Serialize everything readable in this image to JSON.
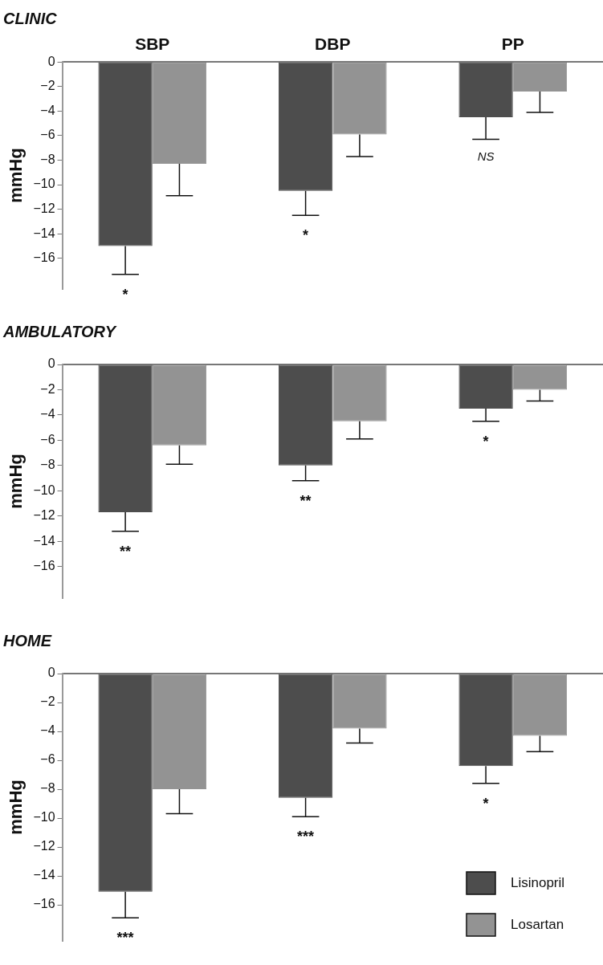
{
  "chart_data": [
    {
      "type": "bar",
      "title": "CLINIC",
      "ylabel": "mmHg",
      "categories": [
        "SBP",
        "DBP",
        "PP"
      ],
      "ylim": [
        -18.5,
        0
      ],
      "yticks": [
        0,
        -2,
        -4,
        -6,
        -8,
        -10,
        -12,
        -14,
        -16
      ],
      "grid": false,
      "legend": false,
      "series": [
        {
          "color": "#4d4d4d",
          "values": [
            -15.0,
            -10.5,
            -4.5
          ],
          "errors": [
            [
              -17.3,
              -15.0
            ],
            [
              -12.5,
              -10.5
            ],
            [
              -6.3,
              -4.5
            ]
          ]
        },
        {
          "color": "#939393",
          "values": [
            -8.3,
            -5.9,
            -2.4
          ],
          "errors": [
            [
              -10.9,
              -8.3
            ],
            [
              -7.7,
              -5.9
            ],
            [
              -4.1,
              -2.4
            ]
          ]
        }
      ],
      "annotations": [
        "*",
        "*",
        "NS"
      ]
    },
    {
      "type": "bar",
      "title": "AMBULATORY",
      "ylabel": "mmHg",
      "categories": [
        null,
        null,
        null
      ],
      "tick_labels": "y",
      "ylim": [
        -18.5,
        0
      ],
      "yticks": [
        0,
        -2,
        -4,
        -6,
        -8,
        -10,
        -12,
        -14,
        -16
      ],
      "grid": false,
      "legend": false,
      "series": [
        {
          "color": "#4d4d4d",
          "values": [
            -11.7,
            -8.0,
            -3.5
          ],
          "errors": [
            [
              -13.2,
              -11.7
            ],
            [
              -9.2,
              -8.0
            ],
            [
              -4.5,
              -3.5
            ]
          ]
        },
        {
          "color": "#939393",
          "values": [
            -6.4,
            -4.5,
            -2.0
          ],
          "errors": [
            [
              -7.9,
              -6.4
            ],
            [
              -5.9,
              -4.5
            ],
            [
              -2.9,
              -2.0
            ]
          ]
        }
      ],
      "annotations": [
        "**",
        "**",
        "*"
      ]
    },
    {
      "type": "bar",
      "title": "HOME",
      "ylabel": "mmHg",
      "categories": [
        null,
        null,
        null
      ],
      "tick_labels": "y",
      "ylim": [
        -18.5,
        0
      ],
      "yticks": [
        0,
        -2,
        -4,
        -6,
        -8,
        -10,
        -12,
        -14,
        -16
      ],
      "grid": false,
      "legend": "bottom right",
      "series": [
        {
          "name": "Lisinopril",
          "color": "#4d4d4d",
          "values": [
            -15.1,
            -8.6,
            -6.4
          ],
          "errors": [
            [
              -16.9,
              -15.1
            ],
            [
              -9.9,
              -8.6
            ],
            [
              -7.6,
              -6.4
            ]
          ]
        },
        {
          "name": "Losartan",
          "color": "#939393",
          "values": [
            -8.0,
            -3.8,
            -4.3
          ],
          "errors": [
            [
              -9.7,
              -8.0
            ],
            [
              -4.8,
              -3.8
            ],
            [
              -5.4,
              -4.3
            ]
          ]
        }
      ],
      "annotations": [
        "***",
        "***",
        "*"
      ]
    }
  ]
}
